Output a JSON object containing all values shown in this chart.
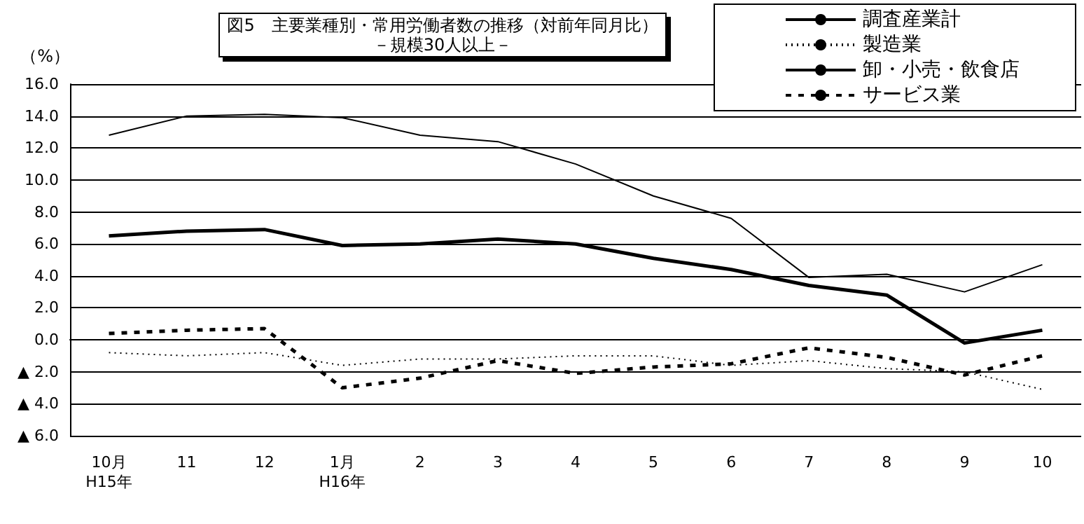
{
  "chart_data": {
    "type": "line",
    "title": "図5　主要業種別・常用労働者数の推移（対前年同月比）",
    "subtitle": "－規模30人以上－",
    "ylabel": "（%）",
    "categories": [
      "10月\nH15年",
      "11",
      "12",
      "1月\nH16年",
      "2",
      "3",
      "4",
      "5",
      "6",
      "7",
      "8",
      "9",
      "10"
    ],
    "series": [
      {
        "name": "調査産業計",
        "color": "#000000",
        "line_style": "solid",
        "values": [
          6.5,
          6.8,
          6.9,
          5.9,
          6.0,
          6.3,
          6.0,
          5.1,
          4.4,
          3.4,
          2.8,
          -0.2,
          0.6
        ]
      },
      {
        "name": "製造業",
        "color": "#000000",
        "line_style": "dotted",
        "values": [
          -0.8,
          -1.0,
          -0.8,
          -1.6,
          -1.2,
          -1.2,
          -1.0,
          -1.0,
          -1.6,
          -1.3,
          -1.8,
          -2.0,
          -3.1
        ]
      },
      {
        "name": "卸・小売・飲食店",
        "color": "#000000",
        "line_style": "solid",
        "values": [
          12.8,
          14.0,
          14.1,
          13.9,
          12.8,
          12.4,
          11.0,
          9.0,
          7.6,
          3.9,
          4.1,
          3.0,
          4.7
        ]
      },
      {
        "name": "サービス業",
        "color": "#000000",
        "line_style": "dashed",
        "values": [
          0.4,
          0.6,
          0.7,
          -3.0,
          -2.4,
          -1.3,
          -2.1,
          -1.7,
          -1.5,
          -0.5,
          -1.1,
          -2.2,
          -1.0
        ]
      }
    ],
    "ylim": [
      -6,
      16
    ],
    "yticks": [
      {
        "value": -6,
        "label": "▲ 6.0"
      },
      {
        "value": -4,
        "label": "▲ 4.0"
      },
      {
        "value": -2,
        "label": "▲ 2.0"
      },
      {
        "value": 0,
        "label": "0.0"
      },
      {
        "value": 2,
        "label": "2.0"
      },
      {
        "value": 4,
        "label": "4.0"
      },
      {
        "value": 6,
        "label": "6.0"
      },
      {
        "value": 8,
        "label": "8.0"
      },
      {
        "value": 10,
        "label": "10.0"
      },
      {
        "value": 12,
        "label": "12.0"
      },
      {
        "value": 14,
        "label": "14.0"
      },
      {
        "value": 16,
        "label": "16.0"
      }
    ],
    "grid": "y",
    "legend": "top right",
    "marker": "none"
  }
}
